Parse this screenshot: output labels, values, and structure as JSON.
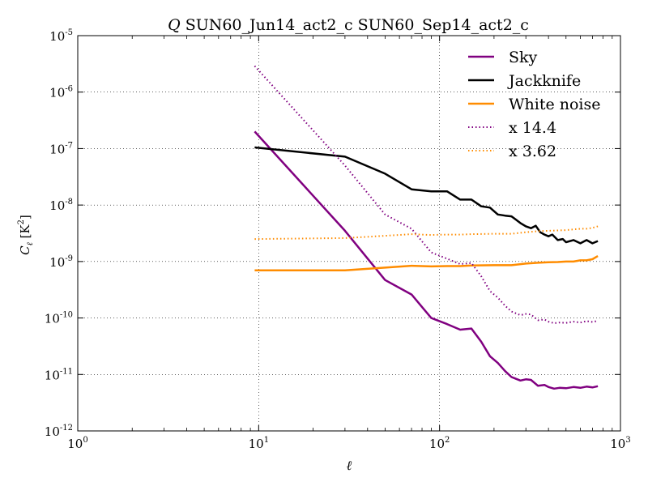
{
  "chart_data": {
    "type": "line",
    "title": "Q SUN60_Jun14_act2_c SUN60_Sep14_act2_c",
    "title_var": "Q",
    "title_rest": "SUN60_Jun14_act2_c SUN60_Sep14_act2_c",
    "xlabel": "ℓ",
    "ylabel": "C_ℓ [K²]",
    "ylabel_main": "C",
    "ylabel_sub": "ℓ",
    "ylabel_unit": "[K",
    "ylabel_unit_exp": "2",
    "ylabel_unit_close": "]",
    "xscale": "log",
    "yscale": "log",
    "xlim": [
      1,
      1000
    ],
    "ylim": [
      1e-12,
      1e-05
    ],
    "grid": true,
    "legend_position": "top-right",
    "x_ticks": [
      {
        "value": 1,
        "base": "10",
        "exp": "0"
      },
      {
        "value": 10,
        "base": "10",
        "exp": "1"
      },
      {
        "value": 100,
        "base": "10",
        "exp": "2"
      },
      {
        "value": 1000,
        "base": "10",
        "exp": "3"
      }
    ],
    "y_ticks": [
      {
        "value": 1e-12,
        "base": "10",
        "exp": "-12"
      },
      {
        "value": 1e-11,
        "base": "10",
        "exp": "-11"
      },
      {
        "value": 1e-10,
        "base": "10",
        "exp": "-10"
      },
      {
        "value": 1e-09,
        "base": "10",
        "exp": "-9"
      },
      {
        "value": 1e-08,
        "base": "10",
        "exp": "-8"
      },
      {
        "value": 1e-07,
        "base": "10",
        "exp": "-7"
      },
      {
        "value": 1e-06,
        "base": "10",
        "exp": "-6"
      },
      {
        "value": 1e-05,
        "base": "10",
        "exp": "-5"
      }
    ],
    "series": [
      {
        "name": "Sky",
        "color": "#800080",
        "style": "solid",
        "x": [
          9.5,
          30,
          50,
          70,
          90,
          110,
          130,
          150,
          170,
          190,
          210,
          230,
          250,
          280,
          300,
          320,
          350,
          380,
          400,
          430,
          460,
          500,
          550,
          600,
          650,
          700,
          750
        ],
        "y": [
          2e-07,
          3.5e-09,
          4.7e-10,
          2.6e-10,
          1e-10,
          7.8e-11,
          6.2e-11,
          6.5e-11,
          3.8e-11,
          2.1e-11,
          1.6e-11,
          1.15e-11,
          9e-12,
          7.8e-12,
          8.2e-12,
          8e-12,
          6.3e-12,
          6.5e-12,
          6e-12,
          5.6e-12,
          5.8e-12,
          5.7e-12,
          6e-12,
          5.8e-12,
          6.1e-12,
          5.9e-12,
          6.2e-12
        ]
      },
      {
        "name": "Jackknife",
        "color": "#000000",
        "style": "solid",
        "x": [
          9.5,
          30,
          50,
          70,
          90,
          110,
          130,
          150,
          170,
          190,
          210,
          230,
          250,
          280,
          300,
          320,
          340,
          360,
          380,
          400,
          420,
          450,
          480,
          500,
          550,
          600,
          650,
          700,
          750
        ],
        "y": [
          1.05e-07,
          7.2e-08,
          3.6e-08,
          1.9e-08,
          1.75e-08,
          1.75e-08,
          1.25e-08,
          1.25e-08,
          9.5e-09,
          9e-09,
          6.8e-09,
          6.5e-09,
          6.3e-09,
          4.8e-09,
          4.2e-09,
          3.9e-09,
          4.3e-09,
          3.3e-09,
          3e-09,
          2.8e-09,
          3e-09,
          2.4e-09,
          2.5e-09,
          2.2e-09,
          2.4e-09,
          2.1e-09,
          2.4e-09,
          2.1e-09,
          2.3e-09
        ]
      },
      {
        "name": "White noise",
        "color": "#ff8c00",
        "style": "solid",
        "x": [
          9.5,
          30,
          50,
          70,
          90,
          110,
          130,
          150,
          200,
          250,
          300,
          350,
          400,
          450,
          500,
          550,
          600,
          650,
          700,
          750
        ],
        "y": [
          7e-10,
          7e-10,
          7.8e-10,
          8.4e-10,
          8.2e-10,
          8.3e-10,
          8.3e-10,
          8.5e-10,
          8.6e-10,
          8.6e-10,
          9.2e-10,
          9.5e-10,
          9.7e-10,
          9.8e-10,
          1e-09,
          1e-09,
          1.05e-09,
          1.05e-09,
          1.1e-09,
          1.25e-09
        ]
      },
      {
        "name": "x 14.4",
        "color": "#800080",
        "style": "dotted",
        "x": [
          9.5,
          30,
          50,
          70,
          90,
          110,
          130,
          150,
          170,
          190,
          210,
          230,
          250,
          280,
          300,
          320,
          350,
          380,
          400,
          430,
          460,
          500,
          550,
          600,
          650,
          700,
          750
        ],
        "y": [
          2.9e-06,
          5e-08,
          6.8e-09,
          3.8e-09,
          1.45e-09,
          1.12e-09,
          9e-10,
          9.4e-10,
          5.5e-10,
          3e-10,
          2.3e-10,
          1.65e-10,
          1.3e-10,
          1.12e-10,
          1.18e-10,
          1.15e-10,
          9.1e-11,
          9.4e-11,
          8.6e-11,
          8.1e-11,
          8.3e-11,
          8.2e-11,
          8.6e-11,
          8.3e-11,
          8.8e-11,
          8.5e-11,
          8.9e-11
        ]
      },
      {
        "name": "x 3.62",
        "color": "#ff8c00",
        "style": "dotted",
        "x": [
          9.5,
          30,
          50,
          70,
          90,
          110,
          130,
          150,
          200,
          250,
          300,
          350,
          400,
          450,
          500,
          550,
          600,
          650,
          700,
          750
        ],
        "y": [
          2.5e-09,
          2.6e-09,
          2.85e-09,
          3.05e-09,
          2.95e-09,
          3e-09,
          3e-09,
          3.05e-09,
          3.1e-09,
          3.1e-09,
          3.3e-09,
          3.45e-09,
          3.5e-09,
          3.55e-09,
          3.6e-09,
          3.7e-09,
          3.8e-09,
          3.8e-09,
          3.95e-09,
          4.2e-09
        ]
      }
    ]
  }
}
